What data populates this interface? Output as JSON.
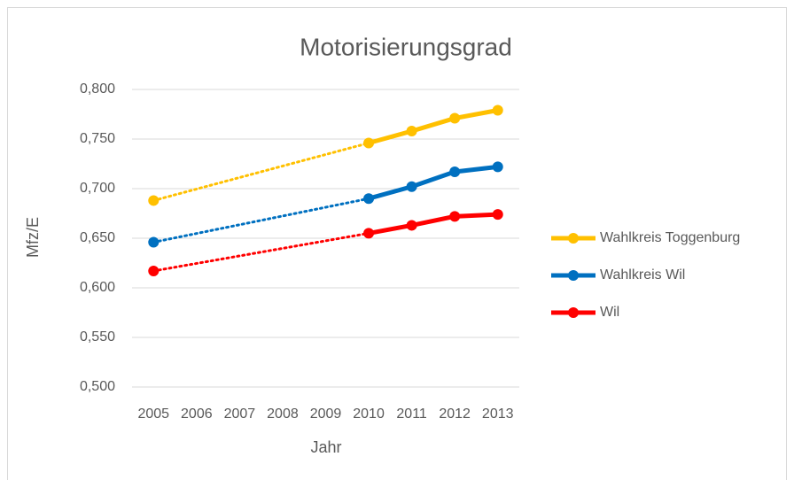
{
  "chart_data": {
    "type": "line",
    "title": "Motorisierungsgrad",
    "x_label": "Jahr",
    "y_label": "Mfz/E",
    "categories": [
      "2005",
      "2006",
      "2007",
      "2008",
      "2009",
      "2010",
      "2011",
      "2012",
      "2013"
    ],
    "series": [
      {
        "name": "Wahlkreis Toggenburg",
        "color": "#ffc000",
        "values": [
          0.688,
          null,
          null,
          null,
          null,
          0.746,
          0.758,
          0.771,
          0.779
        ]
      },
      {
        "name": "Wahlkreis Wil",
        "color": "#0070c0",
        "values": [
          0.646,
          null,
          null,
          null,
          null,
          0.69,
          0.702,
          0.717,
          0.722
        ]
      },
      {
        "name": "Wil",
        "color": "#ff0000",
        "values": [
          0.617,
          null,
          null,
          null,
          null,
          0.655,
          0.663,
          0.672,
          0.674
        ]
      }
    ],
    "ylim": [
      0.5,
      0.8
    ],
    "yticks": [
      {
        "value": 0.5,
        "label": "0,500"
      },
      {
        "value": 0.55,
        "label": "0,550"
      },
      {
        "value": 0.6,
        "label": "0,600"
      },
      {
        "value": 0.65,
        "label": "0,650"
      },
      {
        "value": 0.7,
        "label": "0,700"
      },
      {
        "value": 0.75,
        "label": "0,750"
      },
      {
        "value": 0.8,
        "label": "0,800"
      }
    ],
    "grid": true,
    "gap_style": "dotted",
    "legend": "right"
  }
}
